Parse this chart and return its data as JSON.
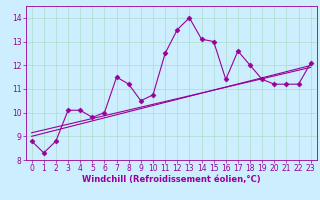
{
  "title": "",
  "xlabel": "Windchill (Refroidissement éolien,°C)",
  "ylabel": "",
  "bg_color": "#cceeff",
  "grid_color": "#aaddcc",
  "line_color": "#990099",
  "x_data": [
    0,
    1,
    2,
    3,
    4,
    5,
    6,
    7,
    8,
    9,
    10,
    11,
    12,
    13,
    14,
    15,
    16,
    17,
    18,
    19,
    20,
    21,
    22,
    23
  ],
  "y_main": [
    8.8,
    8.3,
    8.8,
    10.1,
    10.1,
    9.8,
    10.0,
    11.5,
    11.2,
    10.5,
    10.75,
    12.5,
    13.5,
    14.0,
    13.1,
    13.0,
    11.4,
    12.6,
    12.0,
    11.4,
    11.2,
    11.2,
    11.2,
    12.1
  ],
  "y_reg1": [
    9.0,
    9.13,
    9.26,
    9.39,
    9.52,
    9.65,
    9.78,
    9.91,
    10.04,
    10.17,
    10.3,
    10.43,
    10.56,
    10.69,
    10.82,
    10.95,
    11.08,
    11.21,
    11.34,
    11.47,
    11.6,
    11.73,
    11.86,
    11.99
  ],
  "y_reg2": [
    9.15,
    9.27,
    9.39,
    9.51,
    9.63,
    9.75,
    9.87,
    9.99,
    10.11,
    10.23,
    10.35,
    10.47,
    10.59,
    10.71,
    10.83,
    10.95,
    11.07,
    11.19,
    11.31,
    11.43,
    11.55,
    11.67,
    11.79,
    11.91
  ],
  "xlim": [
    -0.5,
    23.5
  ],
  "ylim": [
    8.0,
    14.5
  ],
  "yticks": [
    8,
    9,
    10,
    11,
    12,
    13,
    14
  ],
  "xticks": [
    0,
    1,
    2,
    3,
    4,
    5,
    6,
    7,
    8,
    9,
    10,
    11,
    12,
    13,
    14,
    15,
    16,
    17,
    18,
    19,
    20,
    21,
    22,
    23
  ],
  "tick_fontsize": 5.5,
  "label_fontsize": 6.0,
  "marker": "D",
  "markersize": 2.5,
  "linewidth": 0.8
}
